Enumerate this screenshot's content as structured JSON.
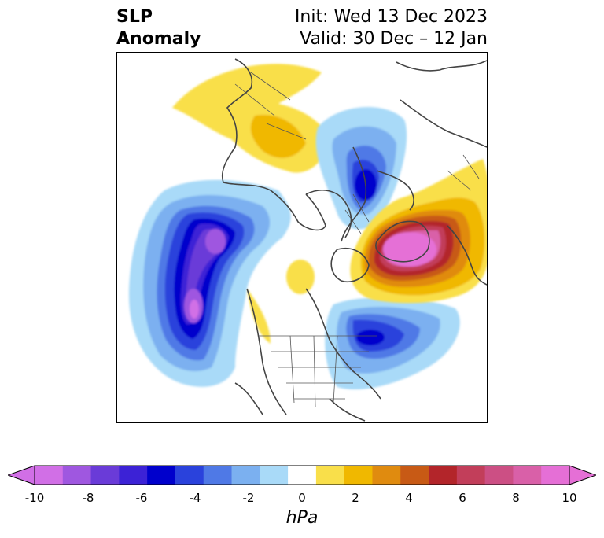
{
  "title": {
    "line1": "SLP",
    "line2": "Anomaly",
    "init": "Init: Wed 13 Dec 2023",
    "valid": "Valid: 30 Dec – 12 Jan"
  },
  "colorbar": {
    "unit": "hPa",
    "ticks": [
      "-10",
      "-8",
      "-6",
      "-4",
      "-2",
      "0",
      "2",
      "4",
      "6",
      "8",
      "10"
    ],
    "levels": [
      -10,
      -9,
      -8,
      -7,
      -6,
      -5,
      -4,
      -3,
      -2,
      -1,
      1,
      2,
      3,
      4,
      5,
      6,
      7,
      8,
      9,
      10
    ],
    "colors": [
      "#d16fe6",
      "#9f57e0",
      "#6a3bd8",
      "#3c22d6",
      "#0000cc",
      "#2a42dc",
      "#4f79e6",
      "#7bb0f0",
      "#a9daf8",
      "#ffffff",
      "#f9df4a",
      "#f0b800",
      "#e08b0f",
      "#c85a15",
      "#b3252a",
      "#c23e5a",
      "#cc4f84",
      "#d960a8",
      "#e56fd6"
    ],
    "extend_low_color": "#d16fe6",
    "extend_high_color": "#e56fd6"
  },
  "map": {
    "projection": "north polar stereographic",
    "features": [
      "coastlines",
      "country borders",
      "US state borders",
      "Canadian province borders"
    ],
    "anomaly_centers": [
      {
        "region": "North Pacific / Gulf of Alaska",
        "sign": "negative",
        "min_hPa": -10
      },
      {
        "region": "Eastern Canada / Labrador",
        "sign": "negative",
        "min_hPa": -6
      },
      {
        "region": "Barents/Kara Sea",
        "sign": "negative",
        "min_hPa": -6
      },
      {
        "region": "Greenland / Iceland / North Atlantic",
        "sign": "positive",
        "max_hPa": 10
      },
      {
        "region": "Siberia",
        "sign": "positive",
        "max_hPa": 2
      }
    ]
  }
}
